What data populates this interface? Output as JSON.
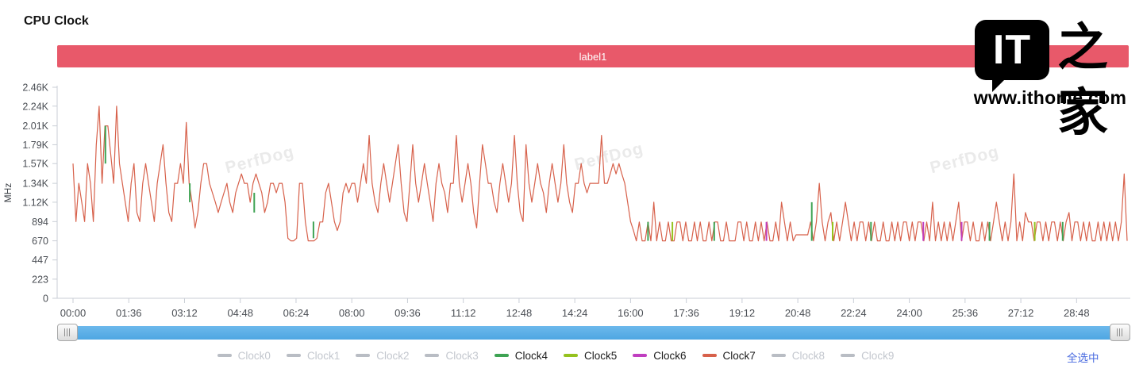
{
  "page": {
    "title": "CPU Clock"
  },
  "banner": {
    "label": "label1",
    "color": "#e8596a"
  },
  "logo": {
    "it_text": "IT",
    "cjk_text": "之家",
    "site_text": "www.ithome.com"
  },
  "watermark": {
    "text": "PerfDog"
  },
  "legend": {
    "select_all_label": "全选中",
    "select_all_color": "#4a6be0"
  },
  "scrollbar": {
    "color": "#57ace4",
    "handle_grip": "vertical-grip-lines"
  },
  "chart_data": {
    "type": "line",
    "title": "CPU Clock",
    "xlabel": "",
    "ylabel": "MHz",
    "ylim": [
      0,
      2460
    ],
    "grid": false,
    "legend_position": "bottom",
    "y_ticks": [
      {
        "label": "2.46K",
        "value": 2460
      },
      {
        "label": "2.24K",
        "value": 2240
      },
      {
        "label": "2.01K",
        "value": 2010
      },
      {
        "label": "1.79K",
        "value": 1790
      },
      {
        "label": "1.57K",
        "value": 1570
      },
      {
        "label": "1.34K",
        "value": 1340
      },
      {
        "label": "1.12K",
        "value": 1120
      },
      {
        "label": "894",
        "value": 894
      },
      {
        "label": "670",
        "value": 670
      },
      {
        "label": "447",
        "value": 447
      },
      {
        "label": "223",
        "value": 223
      },
      {
        "label": "0",
        "value": 0
      }
    ],
    "x_ticks": [
      "00:00",
      "01:36",
      "03:12",
      "04:48",
      "06:24",
      "08:00",
      "09:36",
      "11:12",
      "12:48",
      "14:24",
      "16:00",
      "17:36",
      "19:12",
      "20:48",
      "22:24",
      "24:00",
      "25:36",
      "27:12",
      "28:48"
    ],
    "x_tick_interval_minutes": 1.6,
    "sample_interval_seconds": 5,
    "series": [
      {
        "name": "Clock0",
        "color": "#b9bdc4",
        "dimmed": true
      },
      {
        "name": "Clock1",
        "color": "#b9bdc4",
        "dimmed": true
      },
      {
        "name": "Clock2",
        "color": "#b9bdc4",
        "dimmed": true
      },
      {
        "name": "Clock3",
        "color": "#b9bdc4",
        "dimmed": true
      },
      {
        "name": "Clock4",
        "color": "#3ea353",
        "dimmed": false
      },
      {
        "name": "Clock5",
        "color": "#95c21e",
        "dimmed": false
      },
      {
        "name": "Clock6",
        "color": "#c03ec0",
        "dimmed": false
      },
      {
        "name": "Clock7",
        "color": "#d7614b",
        "dimmed": false,
        "values": [
          1570,
          894,
          1340,
          1120,
          894,
          1570,
          1340,
          894,
          1790,
          2240,
          1340,
          2010,
          2010,
          1670,
          1340,
          2240,
          1570,
          1340,
          1120,
          894,
          1340,
          1570,
          1000,
          894,
          1340,
          1570,
          1340,
          1120,
          894,
          1340,
          1570,
          1790,
          1340,
          1000,
          894,
          1340,
          1340,
          1570,
          1340,
          2050,
          1340,
          1120,
          820,
          1000,
          1340,
          1570,
          1570,
          1340,
          1230,
          1120,
          1000,
          1120,
          1230,
          1340,
          1120,
          1000,
          1230,
          1340,
          1450,
          1340,
          1340,
          1120,
          1340,
          1450,
          1340,
          1230,
          1000,
          1120,
          1340,
          1340,
          1230,
          1340,
          1340,
          1120,
          700,
          670,
          670,
          700,
          1340,
          1340,
          890,
          670,
          670,
          670,
          700,
          890,
          890,
          1230,
          1340,
          1120,
          894,
          790,
          894,
          1230,
          1340,
          1230,
          1340,
          1340,
          1120,
          1340,
          1570,
          1340,
          1900,
          1340,
          1120,
          1000,
          1340,
          1570,
          1340,
          1120,
          1340,
          1570,
          1790,
          1340,
          1000,
          894,
          1340,
          1790,
          1340,
          1120,
          1340,
          1570,
          1340,
          1120,
          894,
          1340,
          1570,
          1340,
          1230,
          1000,
          1340,
          1340,
          1900,
          1340,
          1120,
          1340,
          1570,
          1340,
          1000,
          820,
          1340,
          1790,
          1570,
          1340,
          1340,
          1120,
          1000,
          1340,
          1570,
          1340,
          1120,
          1340,
          1900,
          1340,
          1000,
          894,
          1790,
          1340,
          1120,
          1340,
          1570,
          1340,
          1230,
          1000,
          1340,
          1570,
          1340,
          1120,
          1340,
          1790,
          1340,
          1120,
          1000,
          1340,
          1340,
          1570,
          1340,
          1230,
          1340,
          1340,
          1340,
          1340,
          1900,
          1340,
          1340,
          1450,
          1570,
          1450,
          1570,
          1450,
          1340,
          1120,
          894,
          790,
          670,
          890,
          670,
          670,
          890,
          670,
          1120,
          670,
          890,
          670,
          670,
          890,
          670,
          670,
          890,
          890,
          670,
          890,
          670,
          670,
          890,
          670,
          890,
          670,
          670,
          890,
          670,
          890,
          890,
          670,
          670,
          890,
          670,
          670,
          670,
          890,
          890,
          670,
          890,
          670,
          670,
          890,
          670,
          890,
          670,
          890,
          670,
          670,
          890,
          670,
          1120,
          890,
          670,
          890,
          670,
          740,
          740,
          740,
          740,
          740,
          890,
          670,
          890,
          1340,
          890,
          670,
          890,
          1000,
          670,
          890,
          670,
          890,
          1120,
          890,
          670,
          890,
          670,
          890,
          890,
          670,
          890,
          670,
          890,
          670,
          670,
          890,
          670,
          670,
          890,
          670,
          890,
          670,
          890,
          890,
          670,
          890,
          670,
          890,
          890,
          670,
          890,
          670,
          1120,
          670,
          890,
          670,
          890,
          670,
          890,
          670,
          890,
          1120,
          670,
          890,
          890,
          670,
          890,
          670,
          670,
          890,
          670,
          890,
          670,
          890,
          1120,
          890,
          670,
          890,
          670,
          890,
          1450,
          670,
          890,
          670,
          1000,
          890,
          890,
          670,
          890,
          890,
          670,
          890,
          670,
          890,
          890,
          670,
          890,
          670,
          890,
          1000,
          670,
          890,
          890,
          670,
          890,
          670,
          890,
          670,
          670,
          890,
          670,
          890,
          670,
          890,
          670,
          890,
          670,
          890,
          1450,
          670
        ]
      },
      {
        "name": "Clock8",
        "color": "#b9bdc4",
        "dimmed": true
      },
      {
        "name": "Clock9",
        "color": "#b9bdc4",
        "dimmed": true
      }
    ],
    "overlay_marks": [
      {
        "series": "Clock4",
        "color": "#3ea353",
        "minute": 0.93,
        "from": 1570,
        "to": 2010
      },
      {
        "series": "Clock4",
        "color": "#3ea353",
        "minute": 3.35,
        "from": 1120,
        "to": 1340
      },
      {
        "series": "Clock4",
        "color": "#3ea353",
        "minute": 5.2,
        "from": 1000,
        "to": 1230
      },
      {
        "series": "Clock4",
        "color": "#3ea353",
        "minute": 6.9,
        "from": 700,
        "to": 894
      },
      {
        "series": "Clock4",
        "color": "#3ea353",
        "minute": 16.5,
        "from": 670,
        "to": 890
      },
      {
        "series": "Clock5",
        "color": "#95c21e",
        "minute": 17.2,
        "from": 670,
        "to": 890
      },
      {
        "series": "Clock4",
        "color": "#3ea353",
        "minute": 18.4,
        "from": 670,
        "to": 890
      },
      {
        "series": "Clock6",
        "color": "#c03ec0",
        "minute": 19.9,
        "from": 670,
        "to": 890
      },
      {
        "series": "Clock4",
        "color": "#3ea353",
        "minute": 21.2,
        "from": 670,
        "to": 1120
      },
      {
        "series": "Clock5",
        "color": "#95c21e",
        "minute": 21.8,
        "from": 670,
        "to": 890
      },
      {
        "series": "Clock4",
        "color": "#3ea353",
        "minute": 22.9,
        "from": 670,
        "to": 890
      },
      {
        "series": "Clock6",
        "color": "#c03ec0",
        "minute": 24.4,
        "from": 670,
        "to": 890
      },
      {
        "series": "Clock6",
        "color": "#c03ec0",
        "minute": 25.5,
        "from": 670,
        "to": 890
      },
      {
        "series": "Clock4",
        "color": "#3ea353",
        "minute": 26.3,
        "from": 670,
        "to": 890
      },
      {
        "series": "Clock5",
        "color": "#95c21e",
        "minute": 27.6,
        "from": 670,
        "to": 890
      },
      {
        "series": "Clock4",
        "color": "#3ea353",
        "minute": 28.4,
        "from": 670,
        "to": 890
      }
    ]
  }
}
